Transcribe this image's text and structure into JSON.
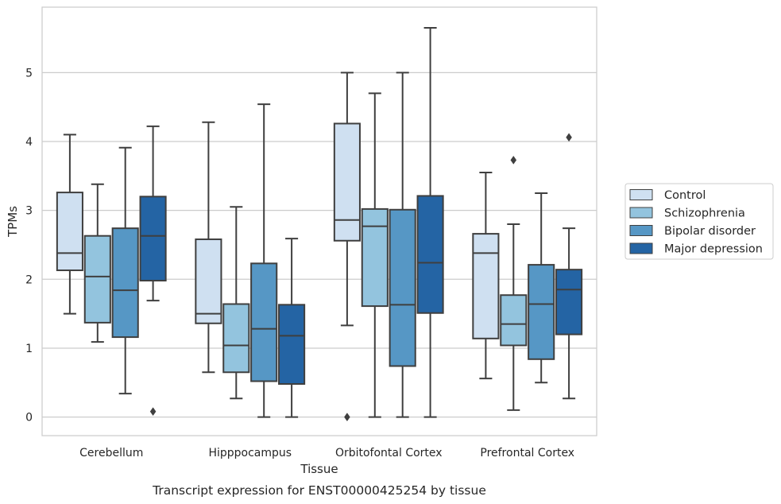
{
  "chart_data": {
    "type": "box",
    "xlabel": "Tissue",
    "ylabel": "TPMs",
    "caption": "Transcript expression for ENST00000425254 by tissue",
    "ylim": [
      -0.27,
      5.95
    ],
    "yticks": [
      0,
      1,
      2,
      3,
      4,
      5
    ],
    "grid": "horizontal",
    "legend_position": "right",
    "categories": [
      "Cerebellum",
      "Hipppocampus",
      "Orbitofontal Cortex",
      "Prefrontal Cortex"
    ],
    "series": [
      {
        "name": "Control",
        "color": "#cfe0f1",
        "boxes": [
          {
            "whislo": 1.5,
            "q1": 2.13,
            "med": 2.38,
            "q3": 3.26,
            "whishi": 4.1,
            "fliers": []
          },
          {
            "whislo": 0.65,
            "q1": 1.36,
            "med": 1.5,
            "q3": 2.58,
            "whishi": 4.28,
            "fliers": []
          },
          {
            "whislo": 1.33,
            "q1": 2.56,
            "med": 2.86,
            "q3": 4.26,
            "whishi": 5.0,
            "fliers": [
              0.0
            ]
          },
          {
            "whislo": 0.56,
            "q1": 1.14,
            "med": 2.38,
            "q3": 2.66,
            "whishi": 3.55,
            "fliers": []
          }
        ]
      },
      {
        "name": "Schizophrenia",
        "color": "#93c4de",
        "boxes": [
          {
            "whislo": 1.09,
            "q1": 1.37,
            "med": 2.04,
            "q3": 2.63,
            "whishi": 3.38,
            "fliers": []
          },
          {
            "whislo": 0.27,
            "q1": 0.65,
            "med": 1.04,
            "q3": 1.64,
            "whishi": 3.05,
            "fliers": []
          },
          {
            "whislo": 0.0,
            "q1": 1.61,
            "med": 2.77,
            "q3": 3.02,
            "whishi": 4.7,
            "fliers": []
          },
          {
            "whislo": 0.1,
            "q1": 1.04,
            "med": 1.35,
            "q3": 1.77,
            "whishi": 2.8,
            "fliers": [
              3.73
            ]
          }
        ]
      },
      {
        "name": "Bipolar disorder",
        "color": "#5697c5",
        "boxes": [
          {
            "whislo": 0.34,
            "q1": 1.16,
            "med": 1.84,
            "q3": 2.74,
            "whishi": 3.91,
            "fliers": []
          },
          {
            "whislo": 0.0,
            "q1": 0.52,
            "med": 1.28,
            "q3": 2.23,
            "whishi": 4.54,
            "fliers": []
          },
          {
            "whislo": 0.0,
            "q1": 0.74,
            "med": 1.63,
            "q3": 3.01,
            "whishi": 5.0,
            "fliers": []
          },
          {
            "whislo": 0.5,
            "q1": 0.84,
            "med": 1.64,
            "q3": 2.21,
            "whishi": 3.25,
            "fliers": []
          }
        ]
      },
      {
        "name": "Major depression",
        "color": "#2464a4",
        "boxes": [
          {
            "whislo": 1.69,
            "q1": 1.98,
            "med": 2.63,
            "q3": 3.2,
            "whishi": 4.22,
            "fliers": [
              0.08
            ]
          },
          {
            "whislo": 0.0,
            "q1": 0.48,
            "med": 1.18,
            "q3": 1.63,
            "whishi": 2.59,
            "fliers": []
          },
          {
            "whislo": 0.0,
            "q1": 1.51,
            "med": 2.24,
            "q3": 3.21,
            "whishi": 5.65,
            "fliers": []
          },
          {
            "whislo": 0.27,
            "q1": 1.2,
            "med": 1.85,
            "q3": 2.14,
            "whishi": 2.74,
            "fliers": [
              4.06
            ]
          }
        ]
      }
    ]
  }
}
